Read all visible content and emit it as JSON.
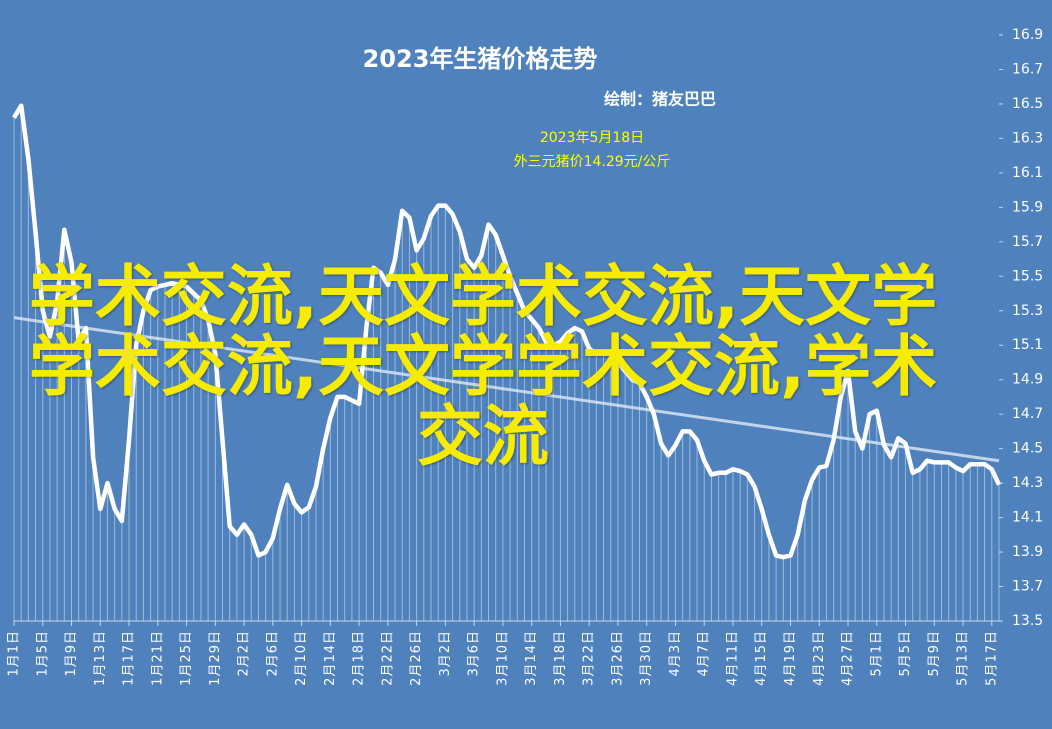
{
  "chart_data": {
    "type": "line",
    "title": "2023年生猪价格走势",
    "subtitle": "绘制：猪友巴巴",
    "annotations": [
      "2023年5月18日",
      "外三元猪价14.29元/公斤"
    ],
    "watermark": "学术交流,天文学术交流,天文学学术交流,天文学学术交流,学术交流",
    "categories": [
      "1月1日",
      null,
      null,
      null,
      "1月5日",
      null,
      null,
      null,
      "1月9日",
      null,
      null,
      null,
      "1月13日",
      null,
      null,
      null,
      "1月17日",
      null,
      null,
      null,
      "1月21日",
      null,
      null,
      null,
      "1月25日",
      null,
      null,
      null,
      "1月29日",
      null,
      null,
      null,
      "2月2日",
      null,
      null,
      null,
      "2月6日",
      null,
      null,
      null,
      "2月10日",
      null,
      null,
      null,
      "2月14日",
      null,
      null,
      null,
      "2月18日",
      null,
      null,
      null,
      "2月22日",
      null,
      null,
      null,
      "2月26日",
      null,
      null,
      null,
      "3月2日",
      null,
      null,
      null,
      "3月6日",
      null,
      null,
      null,
      "3月10日",
      null,
      null,
      null,
      "3月14日",
      null,
      null,
      null,
      "3月18日",
      null,
      null,
      null,
      "3月22日",
      null,
      null,
      null,
      "3月26日",
      null,
      null,
      null,
      "3月30日",
      null,
      null,
      null,
      "4月3日",
      null,
      null,
      null,
      "4月7日",
      null,
      null,
      null,
      "4月11日",
      null,
      null,
      null,
      "4月15日",
      null,
      null,
      null,
      "4月19日",
      null,
      null,
      null,
      "4月23日",
      null,
      null,
      null,
      "4月27日",
      null,
      null,
      null,
      "5月1日",
      null,
      null,
      null,
      "5月5日",
      null,
      null,
      null,
      "5月9日",
      null,
      null,
      null,
      "5月13日",
      null,
      null,
      null,
      "5月17日",
      null
    ],
    "values": [
      16.42,
      16.49,
      16.18,
      15.75,
      15.3,
      15.15,
      15.35,
      15.77,
      15.58,
      15.12,
      15.2,
      14.45,
      14.15,
      14.3,
      14.15,
      14.08,
      14.55,
      15.1,
      15.3,
      15.42,
      15.44,
      15.45,
      15.46,
      15.45,
      15.44,
      15.4,
      15.36,
      15.25,
      15.05,
      14.55,
      14.05,
      14.0,
      14.06,
      14.0,
      13.88,
      13.9,
      13.98,
      14.15,
      14.29,
      14.18,
      14.13,
      14.16,
      14.28,
      14.5,
      14.68,
      14.8,
      14.8,
      14.78,
      14.76,
      15.2,
      15.55,
      15.52,
      15.45,
      15.6,
      15.88,
      15.84,
      15.65,
      15.72,
      15.85,
      15.91,
      15.91,
      15.86,
      15.76,
      15.6,
      15.55,
      15.62,
      15.8,
      15.74,
      15.62,
      15.5,
      15.4,
      15.3,
      15.25,
      15.2,
      15.12,
      15.1,
      15.12,
      15.17,
      15.2,
      15.18,
      15.08,
      15.05,
      15.06,
      15.06,
      15.0,
      14.95,
      14.9,
      14.88,
      14.8,
      14.7,
      14.53,
      14.46,
      14.52,
      14.6,
      14.6,
      14.55,
      14.43,
      14.35,
      14.36,
      14.36,
      14.38,
      14.37,
      14.35,
      14.28,
      14.15,
      14.0,
      13.88,
      13.87,
      13.88,
      14.0,
      14.2,
      14.32,
      14.39,
      14.4,
      14.55,
      14.8,
      14.95,
      14.6,
      14.5,
      14.7,
      14.72,
      14.52,
      14.45,
      14.56,
      14.53,
      14.36,
      14.38,
      14.43,
      14.42,
      14.42,
      14.42,
      14.39,
      14.37,
      14.41,
      14.41,
      14.41,
      14.38,
      14.29
    ],
    "trend_values": [
      15.26,
      14.43
    ],
    "color": "#ffffff",
    "ylim": [
      13.5,
      16.9
    ],
    "yticks": [
      13.5,
      13.7,
      13.9,
      14.1,
      14.3,
      14.5,
      14.7,
      14.9,
      15.1,
      15.3,
      15.5,
      15.7,
      15.9,
      16.1,
      16.3,
      16.5,
      16.7,
      16.9
    ]
  }
}
